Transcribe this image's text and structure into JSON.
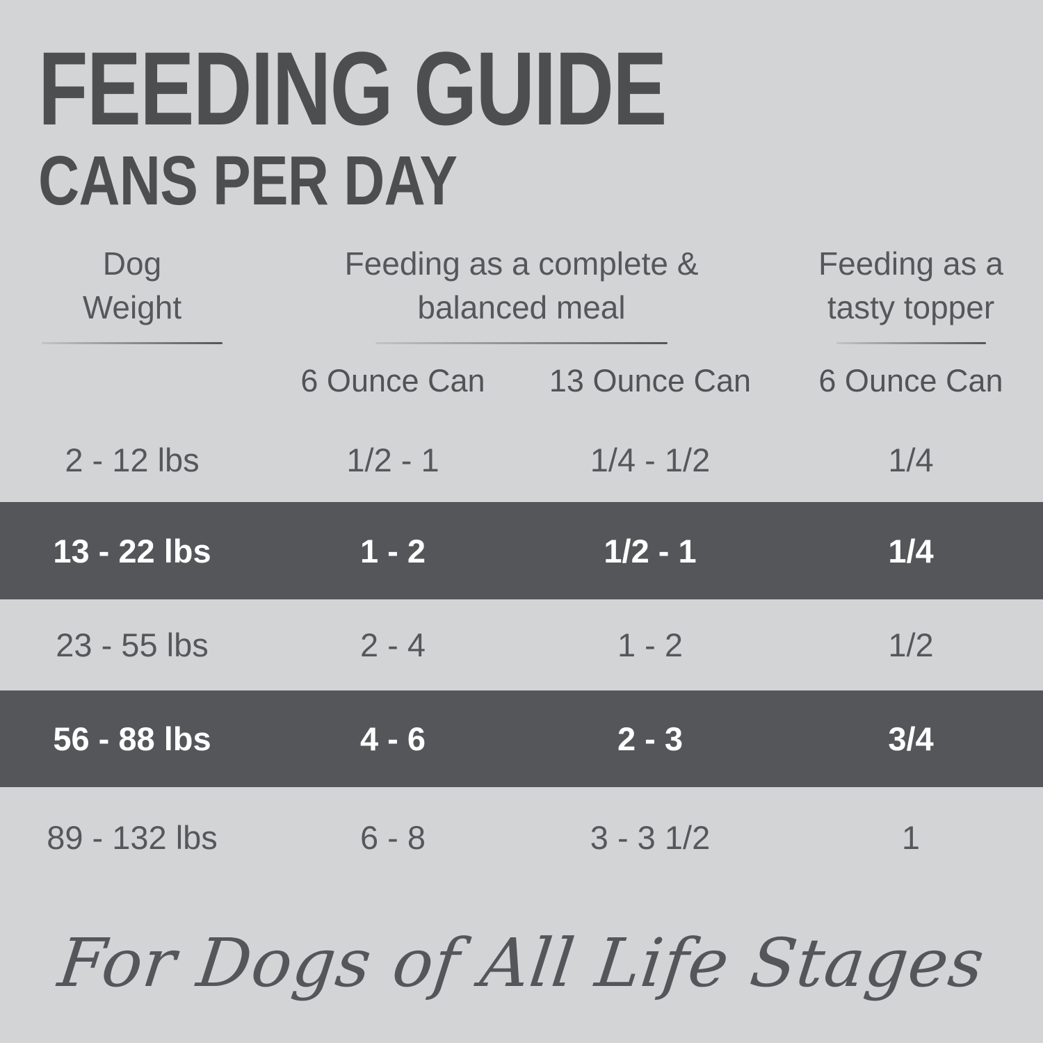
{
  "title": "FEEDING GUIDE",
  "subtitle": "CANS PER DAY",
  "table": {
    "groups": [
      {
        "lines": [
          "Dog",
          "Weight"
        ]
      },
      {
        "lines": [
          "Feeding as a complete &",
          "balanced meal"
        ]
      },
      {
        "lines": [
          "Feeding as a",
          "tasty topper"
        ]
      }
    ],
    "subheaders": [
      "6 Ounce Can",
      "13 Ounce Can",
      "6 Ounce Can"
    ],
    "rows": [
      {
        "weight": "2 - 12 lbs",
        "values": [
          "1/2 - 1",
          "1/4 - 1/2",
          "1/4"
        ],
        "highlighted": false
      },
      {
        "weight": "13 - 22 lbs",
        "values": [
          "1 - 2",
          "1/2 - 1",
          "1/4"
        ],
        "highlighted": true
      },
      {
        "weight": "23 - 55 lbs",
        "values": [
          "2 - 4",
          "1 - 2",
          "1/2"
        ],
        "highlighted": false
      },
      {
        "weight": "56 - 88 lbs",
        "values": [
          "4 - 6",
          "2 - 3",
          "3/4"
        ],
        "highlighted": true
      },
      {
        "weight": "89 - 132 lbs",
        "values": [
          "6 - 8",
          "3 - 3 1/2",
          "1"
        ],
        "highlighted": false
      }
    ]
  },
  "footer": "For Dogs of All Life Stages",
  "colors": {
    "background": "#d3d4d6",
    "title_text": "#4d4e50",
    "body_text": "#56575a",
    "highlight_band": "#545659",
    "highlight_text": "#ffffff"
  }
}
